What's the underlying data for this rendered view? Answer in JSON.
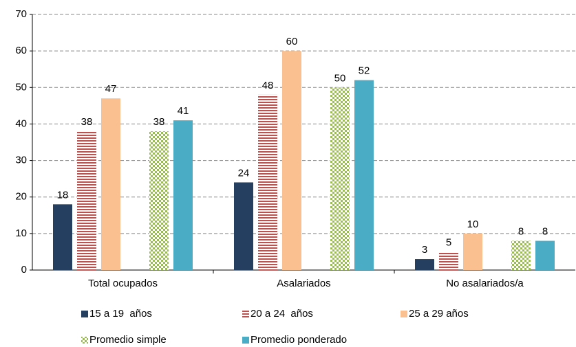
{
  "chart_data": {
    "type": "bar",
    "categories": [
      "Total ocupados",
      "Asalariados",
      "No asalariados/a"
    ],
    "series": [
      {
        "name": "15 a 19  años",
        "color": "#243f60",
        "pattern": "solid",
        "values": [
          18,
          24,
          3
        ]
      },
      {
        "name": "20 a 24  años",
        "color": "#c0504d",
        "pattern": "stripes",
        "values": [
          38,
          48,
          5
        ]
      },
      {
        "name": "25 a 29 años",
        "color": "#fac090",
        "pattern": "solid",
        "values": [
          47,
          60,
          10
        ]
      },
      {
        "name": "Promedio simple",
        "color": "#9bbb59",
        "pattern": "checker",
        "values": [
          38,
          50,
          8
        ]
      },
      {
        "name": "Promedio ponderado",
        "color": "#4bacc6",
        "pattern": "solid",
        "values": [
          41,
          52,
          8
        ]
      }
    ],
    "ylim": [
      0,
      70
    ],
    "yticks": [
      0,
      10,
      20,
      30,
      40,
      50,
      60,
      70
    ],
    "grid": true
  }
}
